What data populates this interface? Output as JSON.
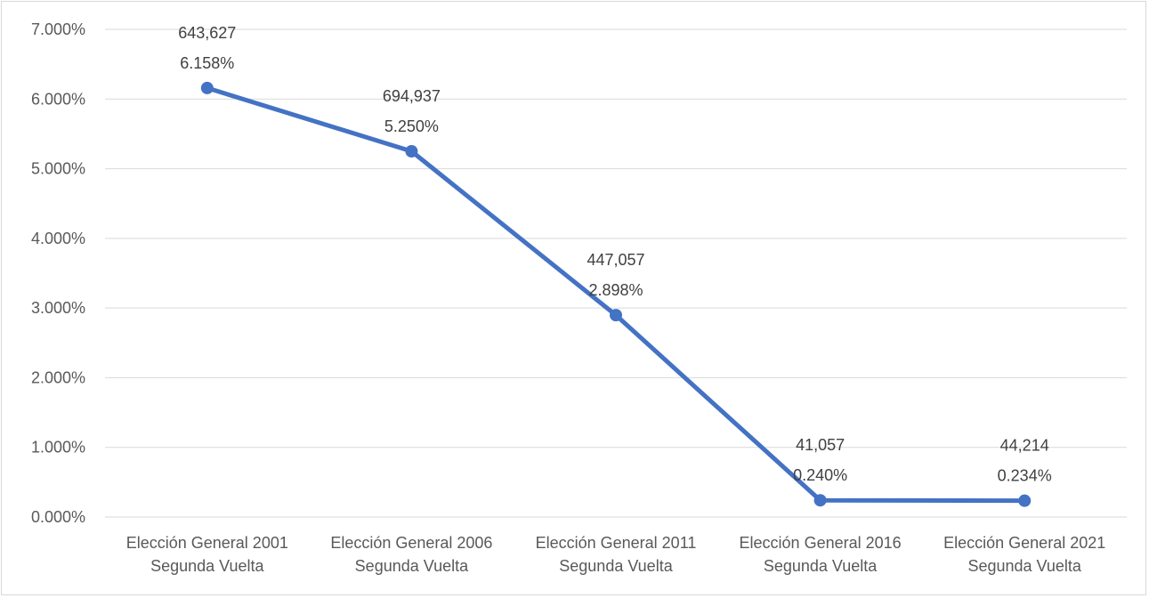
{
  "chart_data": {
    "type": "line",
    "title": "",
    "xlabel": "",
    "ylabel": "",
    "categories": [
      [
        "Elección General 2001",
        "Segunda Vuelta"
      ],
      [
        "Elección General 2006",
        "Segunda Vuelta"
      ],
      [
        "Elección General 2011",
        "Segunda Vuelta"
      ],
      [
        "Elección General 2016",
        "Segunda Vuelta"
      ],
      [
        "Elección General 2021",
        "Segunda Vuelta"
      ]
    ],
    "series": [
      {
        "values": [
          6.158,
          5.25,
          2.898,
          0.24,
          0.234
        ],
        "value_labels": [
          "6.158%",
          "5.250%",
          "2.898%",
          "0.240%",
          "0.234%"
        ],
        "count_labels": [
          "643,627",
          "694,937",
          "447,057",
          "41,057",
          "44,214"
        ],
        "color": "#4472c4"
      }
    ],
    "ylim": [
      0,
      7
    ],
    "y_ticks": [
      "0.000%",
      "1.000%",
      "2.000%",
      "3.000%",
      "4.000%",
      "5.000%",
      "6.000%",
      "7.000%"
    ],
    "grid": true,
    "legend": "none"
  }
}
